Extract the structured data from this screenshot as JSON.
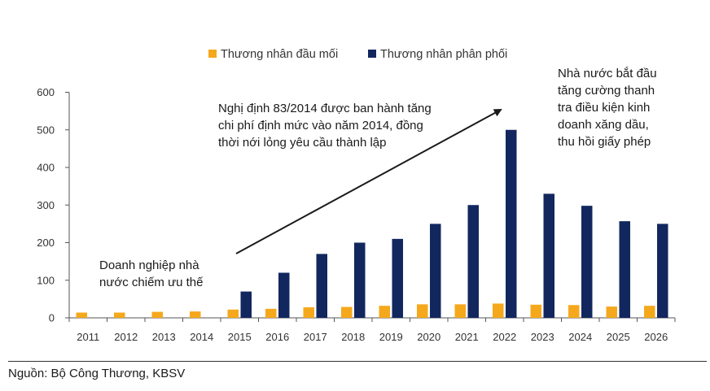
{
  "chart_data": {
    "type": "bar",
    "categories": [
      "2011",
      "2012",
      "2013",
      "2014",
      "2015",
      "2016",
      "2017",
      "2018",
      "2019",
      "2020",
      "2021",
      "2022",
      "2023",
      "2024",
      "2025",
      "2026"
    ],
    "series": [
      {
        "name": "Thương nhân đầu mối",
        "color": "#f5a81c",
        "values": [
          14,
          14,
          16,
          17,
          22,
          24,
          28,
          29,
          32,
          36,
          36,
          38,
          35,
          34,
          30,
          32
        ]
      },
      {
        "name": "Thương nhân phân phối",
        "color": "#12275e",
        "values": [
          0,
          0,
          0,
          0,
          70,
          120,
          170,
          200,
          210,
          250,
          300,
          500,
          330,
          298,
          257,
          250
        ]
      }
    ],
    "ylim": [
      0,
      600
    ],
    "yticks": [
      0,
      100,
      200,
      300,
      400,
      500,
      600
    ],
    "legend_position": "top-center",
    "grid": false,
    "annotations": [
      {
        "id": "state",
        "lines": [
          "Doanh nghiệp nhà",
          "nước chiếm ưu thế"
        ]
      },
      {
        "id": "decree",
        "lines": [
          "Nghị định 83/2014 được ban hành tăng",
          "chi phí định mức vào năm 2014, đồng",
          "thời nới lỏng yêu cầu thành lập"
        ]
      },
      {
        "id": "tighten",
        "lines": [
          "Nhà nước bắt đầu",
          "tăng cường thanh",
          "tra điều kiện kinh",
          "doanh xăng dầu,",
          "thu hồi giấy phép"
        ]
      }
    ]
  },
  "source": "Nguồn: Bộ Công Thương, KBSV"
}
